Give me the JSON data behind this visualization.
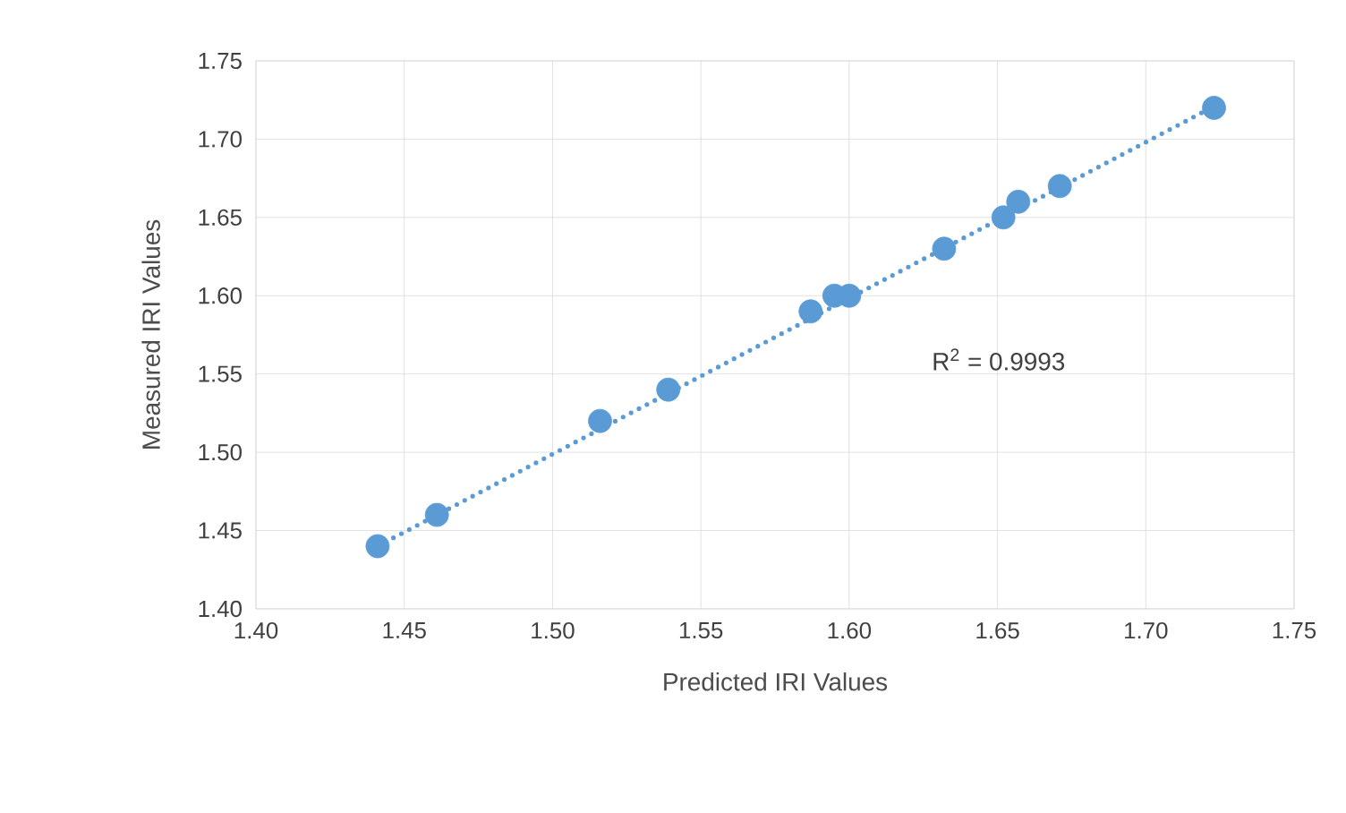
{
  "chart_data": {
    "type": "scatter",
    "xlabel": "Predicted IRI Values",
    "ylabel": "Measured IRI Values",
    "xlim": [
      1.4,
      1.75
    ],
    "xticks": [
      {
        "value": 1.4,
        "label": "1.40"
      },
      {
        "value": 1.45,
        "label": "1.45"
      },
      {
        "value": 1.5,
        "label": "1.50"
      },
      {
        "value": 1.55,
        "label": "1.55"
      },
      {
        "value": 1.6,
        "label": "1.60"
      },
      {
        "value": 1.65,
        "label": "1.65"
      },
      {
        "value": 1.7,
        "label": "1.70"
      },
      {
        "value": 1.75,
        "label": "1.75"
      }
    ],
    "ylim": [
      1.4,
      1.75
    ],
    "yticks": [
      {
        "value": 1.4,
        "label": "1.40"
      },
      {
        "value": 1.45,
        "label": "1.45"
      },
      {
        "value": 1.5,
        "label": "1.50"
      },
      {
        "value": 1.55,
        "label": "1.55"
      },
      {
        "value": 1.6,
        "label": "1.60"
      },
      {
        "value": 1.65,
        "label": "1.65"
      },
      {
        "value": 1.7,
        "label": "1.70"
      },
      {
        "value": 1.75,
        "label": "1.75"
      }
    ],
    "grid": true,
    "series": [
      {
        "color": "#5b9bd5",
        "marker": "circle",
        "x": [
          1.441,
          1.461,
          1.516,
          1.539,
          1.587,
          1.595,
          1.6,
          1.632,
          1.652,
          1.657,
          1.671,
          1.723
        ],
        "values": [
          1.44,
          1.46,
          1.52,
          1.54,
          1.59,
          1.6,
          1.6,
          1.63,
          1.65,
          1.66,
          1.67,
          1.72
        ]
      },
      {
        "type": "line",
        "color": "#5b9bd5",
        "line_style": "dotted",
        "marker": "none",
        "x": [
          1.441,
          1.723
        ],
        "values": [
          1.44,
          1.721
        ]
      }
    ],
    "annotations": [
      "R$^{2}$ = 0.9993"
    ]
  }
}
